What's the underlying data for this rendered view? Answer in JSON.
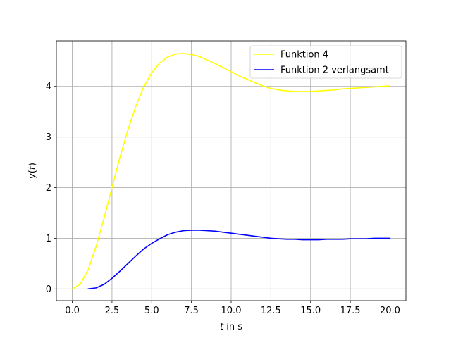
{
  "chart_data": {
    "type": "line",
    "title": "",
    "xlabel": {
      "var": "t",
      "rest": " in s"
    },
    "ylabel": {
      "var": "y",
      "open": "(",
      "arg": "t",
      "close": ")"
    },
    "xlim": [
      -1.0,
      21.0
    ],
    "ylim": [
      -0.232,
      4.9
    ],
    "grid": true,
    "legend_position": "top-right",
    "xticks": [
      0.0,
      2.5,
      5.0,
      7.5,
      10.0,
      12.5,
      15.0,
      17.5,
      20.0
    ],
    "xtick_labels": [
      "0.0",
      "2.5",
      "5.0",
      "7.5",
      "10.0",
      "12.5",
      "15.0",
      "17.5",
      "20.0"
    ],
    "yticks": [
      0,
      1,
      2,
      3,
      4
    ],
    "ytick_labels": [
      "0",
      "1",
      "2",
      "3",
      "4"
    ],
    "series": [
      {
        "name": "Funktion 4",
        "color": "#ffff00",
        "x": [
          0.0,
          0.5,
          1.0,
          1.5,
          2.0,
          2.5,
          3.0,
          3.5,
          4.0,
          4.5,
          5.0,
          5.5,
          6.0,
          6.5,
          7.0,
          7.5,
          8.0,
          8.5,
          9.0,
          9.5,
          10.0,
          10.5,
          11.0,
          11.5,
          12.0,
          12.5,
          13.0,
          13.5,
          14.0,
          14.5,
          15.0,
          15.5,
          16.0,
          16.5,
          17.0,
          17.5,
          18.0,
          18.5,
          19.0,
          19.5,
          20.0
        ],
        "y": [
          0.0,
          0.09,
          0.38,
          0.84,
          1.4,
          2.0,
          2.6,
          3.14,
          3.61,
          3.99,
          4.27,
          4.46,
          4.58,
          4.64,
          4.65,
          4.63,
          4.59,
          4.52,
          4.45,
          4.37,
          4.29,
          4.21,
          4.14,
          4.07,
          4.01,
          3.96,
          3.93,
          3.91,
          3.9,
          3.9,
          3.9,
          3.91,
          3.92,
          3.93,
          3.95,
          3.96,
          3.97,
          3.98,
          3.99,
          4.0,
          4.01
        ]
      },
      {
        "name": "Funktion 2 verlangsamt",
        "color": "#0000ff",
        "x": [
          1.0,
          1.5,
          2.0,
          2.5,
          3.0,
          3.5,
          4.0,
          4.5,
          5.0,
          5.5,
          6.0,
          6.5,
          7.0,
          7.5,
          8.0,
          8.5,
          9.0,
          9.5,
          10.0,
          10.5,
          11.0,
          11.5,
          12.0,
          12.5,
          13.0,
          13.5,
          14.0,
          14.5,
          15.0,
          15.5,
          16.0,
          16.5,
          17.0,
          17.5,
          18.0,
          18.5,
          19.0,
          19.5,
          20.0
        ],
        "y": [
          0.0,
          0.02,
          0.09,
          0.21,
          0.35,
          0.5,
          0.65,
          0.79,
          0.9,
          0.99,
          1.07,
          1.12,
          1.15,
          1.16,
          1.16,
          1.15,
          1.14,
          1.12,
          1.1,
          1.08,
          1.06,
          1.04,
          1.02,
          1.0,
          0.99,
          0.98,
          0.98,
          0.97,
          0.97,
          0.97,
          0.98,
          0.98,
          0.98,
          0.99,
          0.99,
          0.99,
          1.0,
          1.0,
          1.0
        ]
      }
    ]
  }
}
